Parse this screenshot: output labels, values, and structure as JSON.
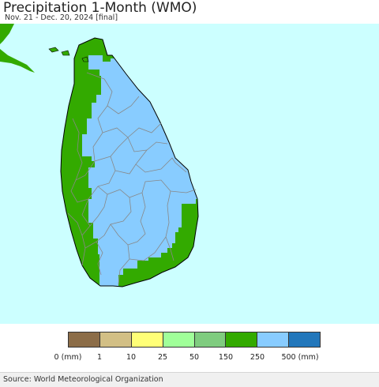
{
  "header": {
    "title": "Precipitation 1-Month (WMO)",
    "subtitle": "Nov. 21 - Dec. 20, 2024 [final]"
  },
  "map": {
    "region": "Sri Lanka",
    "colors": {
      "sea": "#ccffff",
      "india_land": "#33aa00",
      "boundary": "#888888",
      "coastline": "#000000"
    },
    "precip_zones": [
      {
        "zone": "west-coast",
        "class": "150-250",
        "color": "#33aa00"
      },
      {
        "zone": "north-tip",
        "class": "150-250",
        "color": "#33aa00"
      },
      {
        "zone": "south-coast",
        "class": "150-250",
        "color": "#33aa00"
      },
      {
        "zone": "southeast-coast",
        "class": "150-250",
        "color": "#33aa00"
      },
      {
        "zone": "interior-north-east",
        "class": "250-500",
        "color": "#88ccff"
      }
    ]
  },
  "legend": {
    "unit": "(mm)",
    "swatches": [
      {
        "color": "#8c6d48"
      },
      {
        "color": "#d2bf85"
      },
      {
        "color": "#ffff77"
      },
      {
        "color": "#a0ff99"
      },
      {
        "color": "#7fcc7f"
      },
      {
        "color": "#33aa00"
      },
      {
        "color": "#88ccff"
      },
      {
        "color": "#2277bb"
      }
    ],
    "labels": [
      "0 (mm)",
      "1",
      "10",
      "25",
      "50",
      "150",
      "250",
      "500 (mm)"
    ]
  },
  "footer": {
    "source": "Source: World Meteorological Organization"
  }
}
